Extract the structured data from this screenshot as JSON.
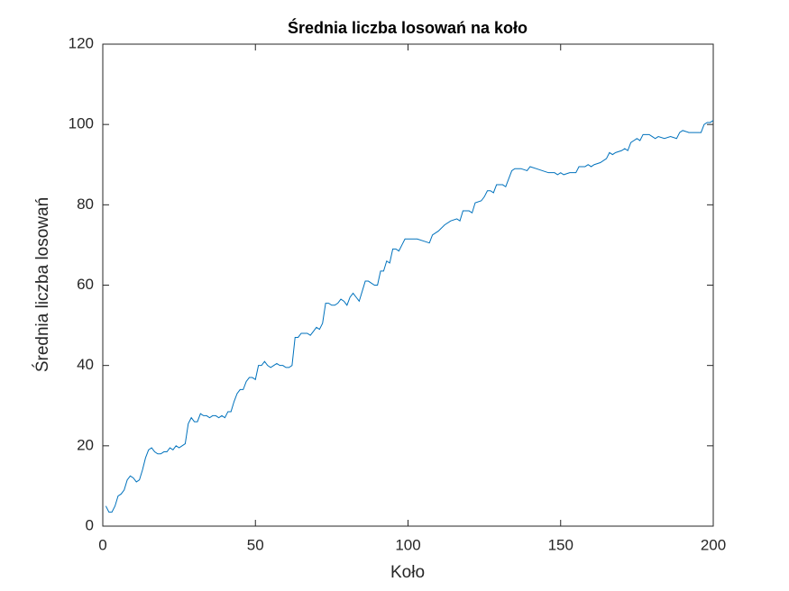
{
  "chart_data": {
    "type": "line",
    "title": "Średnia liczba losowań na koło",
    "x_label": "Koło",
    "y_label": "Średnia liczba losowań",
    "xlim": [
      0,
      200
    ],
    "xticks": [
      0,
      50,
      100,
      150,
      200
    ],
    "ylim": [
      0,
      120
    ],
    "yticks": [
      0,
      20,
      40,
      60,
      80,
      100,
      120
    ],
    "grid": false,
    "x": [
      1,
      2,
      3,
      4,
      5,
      6,
      7,
      8,
      9,
      10,
      11,
      12,
      13,
      14,
      15,
      16,
      17,
      18,
      19,
      20,
      21,
      22,
      23,
      24,
      25,
      26,
      27,
      28,
      29,
      30,
      31,
      32,
      33,
      34,
      35,
      36,
      37,
      38,
      39,
      40,
      41,
      42,
      43,
      44,
      45,
      46,
      47,
      48,
      49,
      50,
      51,
      52,
      53,
      54,
      55,
      56,
      57,
      58,
      59,
      60,
      61,
      62,
      63,
      64,
      65,
      66,
      67,
      68,
      69,
      70,
      71,
      72,
      73,
      74,
      75,
      76,
      77,
      78,
      79,
      80,
      81,
      82,
      83,
      84,
      85,
      86,
      87,
      88,
      89,
      90,
      91,
      92,
      93,
      94,
      95,
      96,
      97,
      98,
      99,
      100,
      101,
      103,
      105,
      107,
      108,
      110,
      112,
      114,
      116,
      117,
      118,
      120,
      121,
      122,
      124,
      125,
      126,
      127,
      128,
      129,
      131,
      132,
      133,
      134,
      135,
      137,
      139,
      140,
      142,
      144,
      146,
      148,
      149,
      150,
      151,
      153,
      155,
      156,
      158,
      159,
      160,
      161,
      163,
      165,
      166,
      167,
      168,
      170,
      171,
      172,
      173,
      174,
      175,
      176,
      177,
      179,
      180,
      181,
      182,
      184,
      186,
      188,
      189,
      190,
      192,
      194,
      196,
      197,
      198,
      199,
      200
    ],
    "series": [
      {
        "color": "#0072bd",
        "values": [
          5,
          3.5,
          3.5,
          5,
          7.5,
          8,
          9,
          11.5,
          12.5,
          12,
          11,
          11.5,
          14,
          17,
          19,
          19.5,
          18.5,
          18,
          18,
          18.5,
          18.5,
          19.5,
          19,
          20,
          19.5,
          20,
          20.5,
          25.5,
          27,
          26,
          26,
          28,
          27.5,
          27.5,
          27,
          27.5,
          27.5,
          27,
          27.5,
          27,
          28.5,
          28.5,
          31,
          33,
          34,
          34,
          36,
          37,
          37,
          36.5,
          40,
          40,
          41,
          40,
          39.5,
          40,
          40.5,
          40,
          40,
          39.5,
          39.5,
          40,
          47,
          47,
          48,
          48,
          48,
          47.5,
          48.5,
          49.5,
          49,
          50.5,
          55.5,
          55.5,
          55,
          55,
          55.5,
          56.5,
          56,
          55,
          57,
          58,
          57,
          56,
          58.5,
          61,
          61,
          60.5,
          60,
          60,
          63.5,
          63.5,
          66,
          65.5,
          69,
          69,
          68.5,
          70,
          71.5,
          71.5,
          71.5,
          71.5,
          71,
          70.5,
          72.5,
          73.5,
          75,
          76,
          76.5,
          76,
          78.5,
          78.5,
          78,
          80.5,
          81,
          82,
          83.5,
          83.5,
          83,
          85,
          85,
          84.5,
          86.5,
          88.5,
          89,
          89,
          88.5,
          89.5,
          89,
          88.5,
          88,
          88,
          87.5,
          88,
          87.5,
          88,
          88,
          89.5,
          89.5,
          90,
          89.5,
          90,
          90.5,
          91.5,
          93,
          92.5,
          93,
          93.5,
          94,
          93.5,
          95.5,
          96,
          96.5,
          96,
          97.5,
          97.5,
          97,
          96.5,
          97,
          96.5,
          97,
          96.5,
          98,
          98.5,
          98,
          98,
          98,
          100,
          100.5,
          100.5,
          101
        ]
      }
    ]
  }
}
